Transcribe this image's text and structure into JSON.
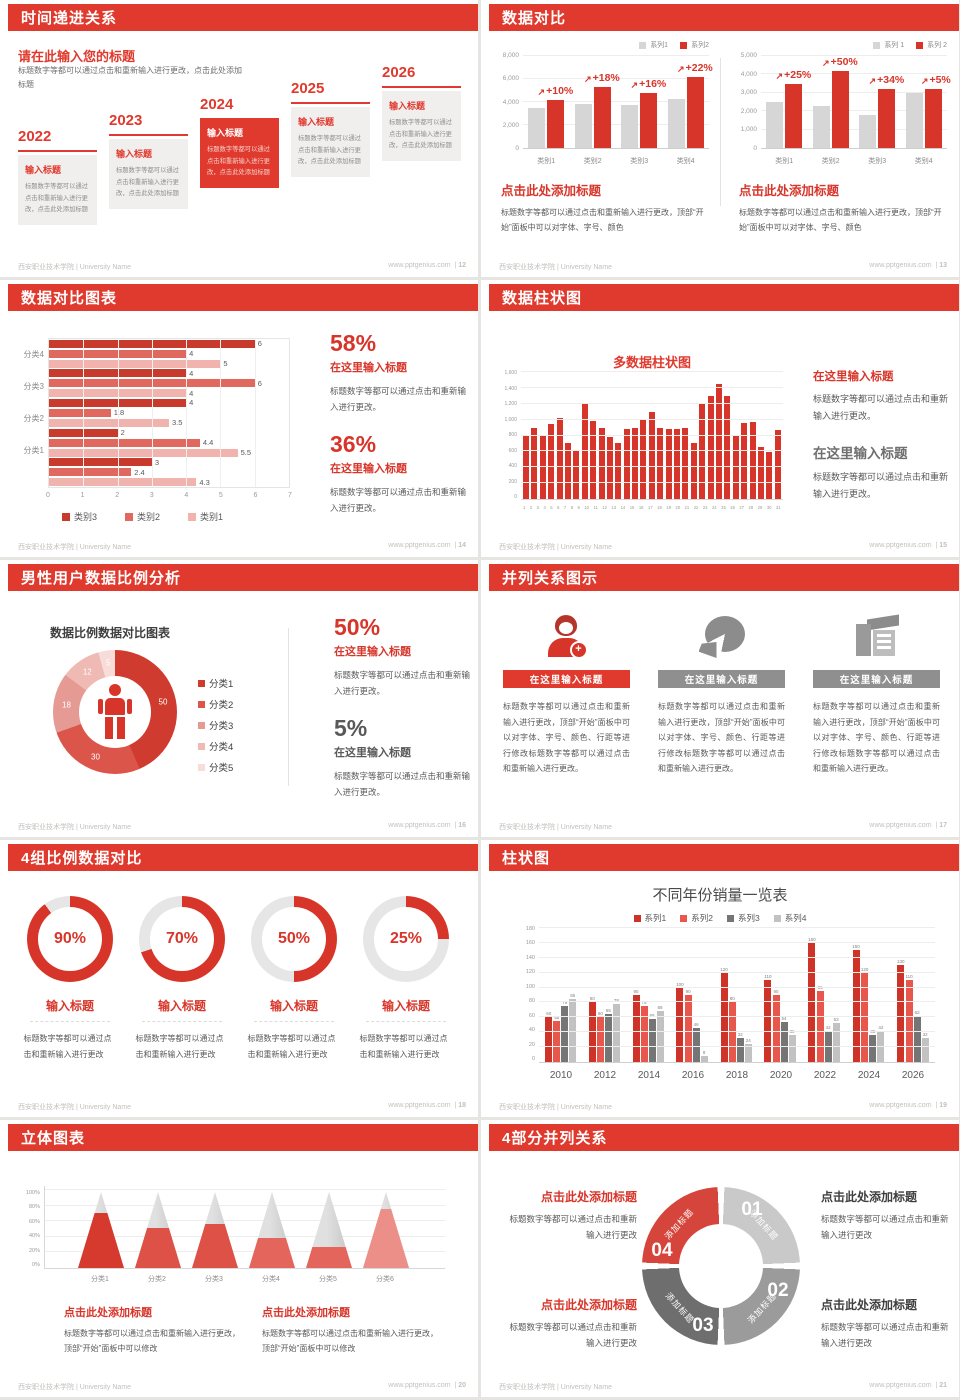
{
  "footer": {
    "left": "西安职业技术学院 | University Name",
    "site": "www.pptgenius.com",
    "sep": "|"
  },
  "colors": {
    "header_red": "#e0392d",
    "accent_red": "#d8352a",
    "bar_gray": "#d6d6d6",
    "text_dark": "#404040",
    "text_body": "#595959",
    "text_muted": "#8a8a8a"
  },
  "slides": {
    "timeline": {
      "page": "12",
      "header": "时间递进关系",
      "intro_title": "请在此输入您的标题",
      "intro_body": "标题数字等都可以通过点击和重新输入进行更改，点击此处添加标题",
      "items": [
        {
          "year": "2022",
          "title": "输入标题",
          "body": "标题数字等都可以通过点击和重新输入进行更改，点击此处添加标题",
          "highlight": false
        },
        {
          "year": "2023",
          "title": "输入标题",
          "body": "标题数字等都可以通过点击和重新输入进行更改，点击此处添加标题",
          "highlight": false
        },
        {
          "year": "2024",
          "title": "输入标题",
          "body": "标题数字等都可以通过点击和重新输入进行更改，点击此处添加标题",
          "highlight": true
        },
        {
          "year": "2025",
          "title": "输入标题",
          "body": "标题数字等都可以通过点击和重新输入进行更改，点击此处添加标题",
          "highlight": false
        },
        {
          "year": "2026",
          "title": "输入标题",
          "body": "标题数字等都可以通过点击和重新输入进行更改，点击此处添加标题",
          "highlight": false
        }
      ]
    },
    "data_compare": {
      "page": "13",
      "header": "数据对比",
      "charts": [
        {
          "legend": [
            "系列1",
            "系列2"
          ],
          "y_ticks": [
            "8,000",
            "6,000",
            "4,000",
            "2,000",
            "0"
          ],
          "ymax": 8000,
          "categories": [
            "类别1",
            "类别2",
            "类别3",
            "类别4"
          ],
          "series1": [
            3500,
            3800,
            3700,
            4300
          ],
          "series2": [
            4200,
            5300,
            4800,
            6200
          ],
          "pct": [
            "+10%",
            "+18%",
            "+16%",
            "+22%"
          ],
          "caption_title": "点击此处添加标题",
          "caption_body": "标题数字等都可以通过点击和重新输入进行更改，顶部“开始”面板中可以对字体、字号、颜色"
        },
        {
          "legend": [
            "系列 1",
            "系列 2"
          ],
          "y_ticks": [
            "5,000",
            "4,000",
            "3,000",
            "2,000",
            "1,000",
            "0"
          ],
          "ymax": 5000,
          "categories": [
            "类别1",
            "类别2",
            "类别3",
            "类别4"
          ],
          "series1": [
            2500,
            2300,
            1800,
            3000
          ],
          "series2": [
            3500,
            4200,
            3200,
            3200
          ],
          "pct": [
            "+25%",
            "+50%",
            "+34%",
            "+5%"
          ],
          "caption_title": "点击此处添加标题",
          "caption_body": "标题数字等都可以通过点击和重新输入进行更改，顶部“开始”面板中可以对字体、字号、颜色"
        }
      ]
    },
    "hbar": {
      "page": "14",
      "header": "数据对比图表",
      "xmax": 7,
      "x_ticks": [
        "0",
        "1",
        "2",
        "3",
        "4",
        "5",
        "6",
        "7"
      ],
      "colors": [
        "#c83a2c",
        "#e0685e",
        "#f0b3ad"
      ],
      "groups": [
        {
          "label": "分类4",
          "values": [
            6,
            4,
            5
          ]
        },
        {
          "label": "分类3",
          "values": [
            4,
            6,
            4
          ]
        },
        {
          "label": "分类2",
          "values": [
            4,
            1.8,
            3.5
          ]
        },
        {
          "label": "分类1",
          "values": [
            2,
            4.4,
            5.5
          ]
        },
        {
          "label": "",
          "values": [
            3,
            2.4,
            4.3
          ]
        }
      ],
      "legend": [
        "类别3",
        "类别2",
        "类别1"
      ],
      "stats": [
        {
          "pct": "58%",
          "title": "在这里输入标题",
          "body": "标题数字等都可以通过点击和重新输入进行更改。"
        },
        {
          "pct": "36%",
          "title": "在这里输入标题",
          "body": "标题数字等都可以通过点击和重新输入进行更改。"
        }
      ]
    },
    "column31": {
      "page": "15",
      "header": "数据柱状图",
      "chart_title": "多数据柱状图",
      "y_ticks": [
        "1,600",
        "1,400",
        "1,200",
        "1,000",
        "800",
        "600",
        "400",
        "200",
        "0"
      ],
      "ymax": 1600,
      "x_labels": [
        "1",
        "2",
        "3",
        "4",
        "5",
        "6",
        "7",
        "8",
        "9",
        "10",
        "11",
        "12",
        "13",
        "14",
        "15",
        "16",
        "17",
        "18",
        "19",
        "20",
        "21",
        "22",
        "23",
        "24",
        "25",
        "26",
        "27",
        "28",
        "29",
        "30",
        "31"
      ],
      "values": [
        790,
        900,
        800,
        950,
        1020,
        700,
        600,
        1200,
        980,
        890,
        780,
        700,
        880,
        890,
        1000,
        1100,
        900,
        880,
        880,
        900,
        700,
        1200,
        1300,
        1450,
        1300,
        800,
        960,
        970,
        660,
        590,
        870
      ],
      "stats": [
        {
          "title": "在这里输入标题",
          "body": "标题数字等都可以通过点击和重新输入进行更改。",
          "red": true
        },
        {
          "title": "在这里输入标题",
          "body": "标题数字等都可以通过点击和重新输入进行更改。",
          "red": false
        }
      ]
    },
    "donut": {
      "page": "16",
      "header": "男性用户数据比例分析",
      "chart_title": "数据比例数据对比图表",
      "slices": [
        {
          "label": "分类1",
          "value": 50,
          "color": "#cf3b2e"
        },
        {
          "label": "分类2",
          "value": 30,
          "color": "#dc554a"
        },
        {
          "label": "分类3",
          "value": 18,
          "color": "#e59a93"
        },
        {
          "label": "分类4",
          "value": 12,
          "color": "#efb9b4"
        },
        {
          "label": "分类5",
          "value": 5,
          "color": "#f7dcd9"
        }
      ],
      "stats": [
        {
          "pct": "50%",
          "title": "在这里输入标题",
          "body": "标题数字等都可以通过点击和重新输入进行更改。",
          "red": true
        },
        {
          "pct": "5%",
          "title": "在这里输入标题",
          "body": "标题数字等都可以通过点击和重新输入进行更改。",
          "red": false
        }
      ]
    },
    "parallel3": {
      "page": "17",
      "header": "并列关系图示",
      "cols": [
        {
          "icon": "nurse-icon",
          "title": "在这里输入标题",
          "accent": true,
          "body": "标题数字等都可以通过点击和重新输入进行更改，顶部“开始”面板中可以对字体、字号、颜色、行距等进行修改标题数字等都可以通过点击和重新输入进行更改。"
        },
        {
          "icon": "pie-3d-icon",
          "title": "在这里输入标题",
          "accent": false,
          "body": "标题数字等都可以通过点击和重新输入进行更改，顶部“开始”面板中可以对字体、字号、颜色、行距等进行修改标题数字等都可以通过点击和重新输入进行更改。"
        },
        {
          "icon": "building-icon",
          "title": "在这里输入标题",
          "accent": false,
          "body": "标题数字等都可以通过点击和重新输入进行更改，顶部“开始”面板中可以对字体、字号、颜色、行距等进行修改标题数字等都可以通过点击和重新输入进行更改。"
        }
      ]
    },
    "rings4": {
      "page": "18",
      "header": "4组比例数据对比",
      "items": [
        {
          "pct": 90,
          "label": "90%",
          "title": "输入标题",
          "body": "标题数字等都可以通过点击和重新输入进行更改"
        },
        {
          "pct": 70,
          "label": "70%",
          "title": "输入标题",
          "body": "标题数字等都可以通过点击和重新输入进行更改"
        },
        {
          "pct": 50,
          "label": "50%",
          "title": "输入标题",
          "body": "标题数字等都可以通过点击和重新输入进行更改"
        },
        {
          "pct": 25,
          "label": "25%",
          "title": "输入标题",
          "body": "标题数字等都可以通过点击和重新输入进行更改"
        }
      ]
    },
    "grouped": {
      "page": "19",
      "header": "柱状图",
      "chart_title": "不同年份销量一览表",
      "legend": [
        "系列1",
        "系列2",
        "系列3",
        "系列4"
      ],
      "colors": [
        "#cf3227",
        "#e8564c",
        "#757575",
        "#c2c2c2"
      ],
      "y_ticks": [
        "180",
        "160",
        "140",
        "120",
        "100",
        "80",
        "60",
        "40",
        "20",
        "0"
      ],
      "ymax": 180,
      "categories": [
        "2010",
        "2012",
        "2014",
        "2016",
        "2018",
        "2020",
        "2022",
        "2024",
        "2026"
      ],
      "series": [
        {
          "name": "系列1",
          "values": [
            60,
            80,
            90,
            100,
            120,
            110,
            160,
            150,
            130
          ]
        },
        {
          "name": "系列2",
          "values": [
            55,
            60,
            75,
            90,
            80,
            90,
            96,
            120,
            110
          ]
        },
        {
          "name": "系列3",
          "values": [
            75,
            65,
            58,
            46,
            32,
            54,
            42,
            36,
            62
          ]
        },
        {
          "name": "系列4",
          "values": [
            85,
            78,
            68,
            8,
            24,
            36,
            53,
            42,
            32
          ]
        }
      ]
    },
    "cones": {
      "page": "20",
      "header": "立体图表",
      "y_ticks": [
        "100%",
        "80%",
        "60%",
        "40%",
        "20%",
        "0%"
      ],
      "items": [
        {
          "label": "分类1",
          "pct": 72,
          "color": "#d63a2e"
        },
        {
          "label": "分类2",
          "pct": 52,
          "color": "#dd5146"
        },
        {
          "label": "分类3",
          "pct": 58,
          "color": "#dd5146"
        },
        {
          "label": "分类4",
          "pct": 40,
          "color": "#e3655c"
        },
        {
          "label": "分类5",
          "pct": 28,
          "color": "#e3655c"
        },
        {
          "label": "分类6",
          "pct": 78,
          "color": "#ec8f88"
        }
      ],
      "captions": [
        {
          "title": "点击此处添加标题",
          "body": "标题数字等都可以通过点击和重新输入进行更改，顶部“开始”面板中可以修改"
        },
        {
          "title": "点击此处添加标题",
          "body": "标题数字等都可以通过点击和重新输入进行更改，顶部“开始”面板中可以修改"
        }
      ]
    },
    "cycle4": {
      "page": "21",
      "header": "4部分并列关系",
      "segments": [
        {
          "num": "01",
          "label": "添加标题",
          "color": "#c9c9c9"
        },
        {
          "num": "02",
          "label": "添加标题",
          "color": "#9b9b9b"
        },
        {
          "num": "03",
          "label": "添加标题",
          "color": "#6e6e6e"
        },
        {
          "num": "04",
          "label": "添加标题",
          "color": "#d6453b"
        }
      ],
      "notes": [
        {
          "title": "点击此处添加标题",
          "body": "标题数字等都可以通过点击和重新输入进行更改",
          "red": true
        },
        {
          "title": "点击此处添加标题",
          "body": "标题数字等都可以通过点击和重新输入进行更改",
          "red": false
        },
        {
          "title": "点击此处添加标题",
          "body": "标题数字等都可以通过点击和重新输入进行更改",
          "red": true
        },
        {
          "title": "点击此处添加标题",
          "body": "标题数字等都可以通过点击和重新输入进行更改",
          "red": false
        }
      ]
    }
  },
  "chart_data": [
    {
      "type": "bar",
      "title": "数据对比-左",
      "categories": [
        "类别1",
        "类别2",
        "类别3",
        "类别4"
      ],
      "series": [
        {
          "name": "系列1",
          "values": [
            3500,
            3800,
            3700,
            4300
          ]
        },
        {
          "name": "系列2",
          "values": [
            4200,
            5300,
            4800,
            6200
          ]
        }
      ],
      "annotations": [
        "+10%",
        "+18%",
        "+16%",
        "+22%"
      ],
      "ylim": [
        0,
        8000
      ],
      "legend_position": "top-right",
      "grid": true
    },
    {
      "type": "bar",
      "title": "数据对比-右",
      "categories": [
        "类别1",
        "类别2",
        "类别3",
        "类别4"
      ],
      "series": [
        {
          "name": "系列 1",
          "values": [
            2500,
            2300,
            1800,
            3000
          ]
        },
        {
          "name": "系列 2",
          "values": [
            3500,
            4200,
            3200,
            3200
          ]
        }
      ],
      "annotations": [
        "+25%",
        "+50%",
        "+34%",
        "+5%"
      ],
      "ylim": [
        0,
        5000
      ],
      "legend_position": "top-right",
      "grid": true
    },
    {
      "type": "bar",
      "title": "数据对比图表",
      "orientation": "horizontal",
      "xlim": [
        0,
        7
      ],
      "categories": [
        "分类4",
        "分类3",
        "分类2",
        "分类1",
        ""
      ],
      "series": [
        {
          "name": "类别3",
          "values": [
            6,
            4,
            4,
            2,
            3
          ]
        },
        {
          "name": "类别2",
          "values": [
            4,
            6,
            1.8,
            4.4,
            2.4
          ]
        },
        {
          "name": "类别1",
          "values": [
            5,
            4,
            3.5,
            5.5,
            4.3
          ]
        }
      ],
      "legend_position": "bottom",
      "grid": true
    },
    {
      "type": "bar",
      "title": "多数据柱状图",
      "x": [
        1,
        2,
        3,
        4,
        5,
        6,
        7,
        8,
        9,
        10,
        11,
        12,
        13,
        14,
        15,
        16,
        17,
        18,
        19,
        20,
        21,
        22,
        23,
        24,
        25,
        26,
        27,
        28,
        29,
        30,
        31
      ],
      "values": [
        790,
        900,
        800,
        950,
        1020,
        700,
        600,
        1200,
        980,
        890,
        780,
        700,
        880,
        890,
        1000,
        1100,
        900,
        880,
        880,
        900,
        700,
        1200,
        1300,
        1450,
        1300,
        800,
        960,
        970,
        660,
        590,
        870
      ],
      "ylim": [
        0,
        1600
      ],
      "grid": true
    },
    {
      "type": "pie",
      "subtype": "donut",
      "title": "数据比例数据对比图表",
      "labels": [
        "分类1",
        "分类2",
        "分类3",
        "分类4",
        "分类5"
      ],
      "values": [
        50,
        30,
        18,
        12,
        5
      ],
      "legend_position": "right"
    },
    {
      "type": "pie",
      "subtype": "progress-rings",
      "title": "4组比例数据对比",
      "values": [
        90,
        70,
        50,
        25
      ]
    },
    {
      "type": "bar",
      "title": "不同年份销量一览表",
      "categories": [
        "2010",
        "2012",
        "2014",
        "2016",
        "2018",
        "2020",
        "2022",
        "2024",
        "2026"
      ],
      "series": [
        {
          "name": "系列1",
          "values": [
            60,
            80,
            90,
            100,
            120,
            110,
            160,
            150,
            130
          ]
        },
        {
          "name": "系列2",
          "values": [
            55,
            60,
            75,
            90,
            80,
            90,
            96,
            120,
            110
          ]
        },
        {
          "name": "系列3",
          "values": [
            75,
            65,
            58,
            46,
            32,
            54,
            42,
            36,
            62
          ]
        },
        {
          "name": "系列4",
          "values": [
            85,
            78,
            68,
            8,
            24,
            36,
            53,
            42,
            32
          ]
        }
      ],
      "ylim": [
        0,
        180
      ],
      "legend_position": "top",
      "grid": true
    },
    {
      "type": "bar",
      "subtype": "cone-3d",
      "title": "立体图表",
      "categories": [
        "分类1",
        "分类2",
        "分类3",
        "分类4",
        "分类5",
        "分类6"
      ],
      "values": [
        72,
        52,
        58,
        40,
        28,
        78
      ],
      "ylim": [
        0,
        100
      ],
      "ylabel_format": "percent"
    }
  ]
}
